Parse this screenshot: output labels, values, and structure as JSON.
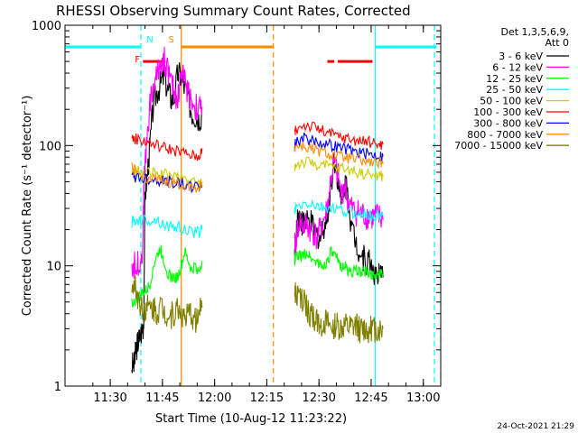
{
  "chart_data": {
    "type": "line",
    "title": "RHESSI Observing Summary Count Rates, Corrected",
    "xlabel": "Start Time (10-Aug-12 11:23:22)",
    "ylabel": "Corrected Count Rate (s⁻¹ detector⁻¹)",
    "yscale": "log",
    "ylim": [
      1,
      1000
    ],
    "xlim_minutes_after_start": [
      -6.4,
      101.6
    ],
    "x_ticks": [
      {
        "label": "11:30",
        "t": 6.6
      },
      {
        "label": "11:45",
        "t": 21.6
      },
      {
        "label": "12:00",
        "t": 36.6
      },
      {
        "label": "12:15",
        "t": 51.6
      },
      {
        "label": "12:30",
        "t": 66.6
      },
      {
        "label": "12:45",
        "t": 81.6
      },
      {
        "label": "13:00",
        "t": 96.6
      }
    ],
    "y_ticks": [
      {
        "label": "1",
        "v": 1
      },
      {
        "label": "10",
        "v": 10
      },
      {
        "label": "100",
        "v": 100
      },
      {
        "label": "1000",
        "v": 1000
      }
    ],
    "legend_header": [
      "Det 1,3,5,6,9,",
      "Att 0"
    ],
    "legend_position": "right",
    "series": [
      {
        "name": "3 - 6 keV",
        "color": "#000000",
        "segments": [
          {
            "x": [
              12.8,
              13.5,
              14.0,
              14.5,
              15.0,
              15.8,
              16.2,
              16.6,
              17.2,
              18.0,
              19.0,
              20.0,
              21.0,
              22.0,
              23.0,
              24.0,
              25.0,
              26.0,
              27.0,
              28.0,
              29.0,
              30.0,
              31.0,
              32.0,
              33.0
            ],
            "y": [
              1.5,
              1.5,
              2.0,
              2.3,
              2.5,
              3.0,
              3.3,
              40,
              55,
              100,
              220,
              280,
              320,
              380,
              300,
              250,
              250,
              400,
              380,
              300,
              250,
              190,
              180,
              170,
              180
            ]
          },
          {
            "x": [
              59.6,
              60.0,
              60.5,
              61.0,
              61.5,
              62.0,
              62.5,
              63.0,
              64.0,
              65.0,
              66.0,
              67.0,
              68.0,
              69.0,
              70.0,
              71.0,
              72.0,
              73.0,
              74.0,
              75.0,
              76.0,
              77.0,
              78.0,
              79.0,
              80.0,
              81.0,
              82.0,
              83.0,
              84.0,
              85.0
            ],
            "y": [
              13,
              15,
              27,
              25,
              24,
              22,
              25,
              22,
              23,
              20,
              18,
              17,
              22,
              25,
              45,
              80,
              55,
              30,
              50,
              40,
              20,
              17,
              14,
              12,
              11,
              11,
              10,
              8,
              8,
              8
            ]
          }
        ]
      },
      {
        "name": "6 - 12 keV",
        "color": "#ff00ff",
        "segments": [
          {
            "x": [
              12.8,
              14.0,
              15.0,
              15.8,
              16.3,
              17.0,
              18.0,
              19.0,
              20.0,
              21.0,
              22.0,
              23.0,
              24.0,
              25.0,
              26.0,
              27.0,
              28.0,
              29.0,
              30.0,
              31.0,
              32.0,
              33.0
            ],
            "y": [
              10,
              10,
              11,
              12,
              50,
              100,
              220,
              310,
              380,
              500,
              520,
              450,
              330,
              280,
              240,
              420,
              350,
              280,
              240,
              210,
              200,
              210
            ]
          },
          {
            "x": [
              59.6,
              60.0,
              61.0,
              62.0,
              63.0,
              64.0,
              65.0,
              66.0,
              67.0,
              68.0,
              69.0,
              70.0,
              71.0,
              72.0,
              73.0,
              74.0,
              75.0,
              76.0,
              77.0,
              78.0,
              79.0,
              80.0,
              81.0,
              82.0,
              83.0,
              84.0,
              85.0
            ],
            "y": [
              14,
              17,
              24,
              21,
              22,
              20,
              19,
              17,
              20,
              24,
              30,
              52,
              72,
              58,
              38,
              48,
              34,
              30,
              28,
              28,
              27,
              26,
              26,
              25,
              26,
              25,
              24
            ]
          }
        ]
      },
      {
        "name": "12 - 25 keV",
        "color": "#00ff00",
        "segments": [
          {
            "x": [
              12.8,
              14.0,
              15.0,
              16.0,
              17.0,
              18.0,
              19.0,
              20.0,
              21.0,
              22.0,
              23.0,
              24.0,
              25.0,
              26.0,
              27.0,
              28.0,
              29.0,
              30.0,
              31.0,
              32.0,
              33.0
            ],
            "y": [
              5,
              5.1,
              5.5,
              6,
              6.2,
              7,
              10,
              12,
              14,
              11,
              9,
              8,
              8,
              8,
              10,
              13,
              11,
              9,
              10,
              9,
              11
            ]
          },
          {
            "x": [
              59.6,
              60.0,
              61.0,
              62.0,
              63.0,
              64.0,
              65.0,
              66.0,
              67.0,
              68.0,
              69.0,
              70.0,
              71.0,
              72.0,
              73.0,
              74.0,
              75.0,
              76.0,
              77.0,
              78.0,
              79.0,
              80.0,
              81.0,
              82.0,
              83.0,
              84.0,
              85.0
            ],
            "y": [
              11,
              12,
              12,
              12,
              13,
              12,
              11,
              11,
              10,
              10,
              11,
              13,
              12,
              11,
              10,
              10,
              9,
              9,
              9,
              9,
              9,
              9,
              8.5,
              8.5,
              8.5,
              8.5,
              8.5
            ]
          }
        ]
      },
      {
        "name": "25 - 50 keV",
        "color": "#00ffff",
        "segments": [
          {
            "x": [
              12.8,
              14.0,
              16.0,
              18.0,
              20.0,
              22.0,
              24.0,
              26.0,
              28.0,
              30.0,
              32.0,
              33.0
            ],
            "y": [
              23,
              24,
              24,
              24,
              24,
              22,
              21,
              21,
              20,
              19,
              19,
              20
            ]
          },
          {
            "x": [
              59.6,
              60.0,
              62.0,
              64.0,
              66.0,
              68.0,
              70.0,
              72.0,
              74.0,
              76.0,
              78.0,
              80.0,
              82.0,
              84.0,
              85.0
            ],
            "y": [
              28,
              30,
              32,
              33,
              31,
              30,
              30,
              29,
              28,
              28,
              27,
              27,
              26,
              26,
              26
            ]
          }
        ]
      },
      {
        "name": "50 - 100 keV",
        "color": "#cccc00",
        "segments": [
          {
            "x": [
              12.8,
              14.0,
              16.0,
              18.0,
              20.0,
              22.0,
              24.0,
              26.0,
              28.0,
              30.0,
              32.0,
              33.0
            ],
            "y": [
              60,
              61,
              60,
              59,
              58,
              57,
              56,
              55,
              53,
              51,
              48,
              50
            ]
          },
          {
            "x": [
              59.6,
              60.0,
              62.0,
              64.0,
              66.0,
              68.0,
              70.0,
              72.0,
              74.0,
              76.0,
              78.0,
              80.0,
              82.0,
              84.0,
              85.0
            ],
            "y": [
              65,
              70,
              72,
              72,
              70,
              68,
              66,
              65,
              64,
              62,
              60,
              58,
              57,
              56,
              55
            ]
          }
        ]
      },
      {
        "name": "100 - 300 keV",
        "color": "#ff0000",
        "segments": [
          {
            "x": [
              12.8,
              14.0,
              16.0,
              18.0,
              20.0,
              22.0,
              24.0,
              26.0,
              28.0,
              30.0,
              32.0,
              33.0
            ],
            "y": [
              115,
              113,
              110,
              105,
              100,
              96,
              93,
              90,
              86,
              83,
              80,
              95
            ]
          },
          {
            "x": [
              59.6,
              60.0,
              62.0,
              64.0,
              66.0,
              68.0,
              70.0,
              72.0,
              74.0,
              76.0,
              78.0,
              80.0,
              82.0,
              84.0,
              85.0
            ],
            "y": [
              125,
              135,
              150,
              145,
              140,
              130,
              125,
              120,
              116,
              113,
              110,
              107,
              105,
              103,
              102
            ]
          }
        ]
      },
      {
        "name": "300 - 800 keV",
        "color": "#0000ff",
        "segments": [
          {
            "x": [
              12.8,
              14.0,
              16.0,
              18.0,
              20.0,
              22.0,
              24.0,
              26.0,
              28.0,
              30.0,
              32.0,
              33.0
            ],
            "y": [
              55,
              55,
              54,
              53,
              52,
              51,
              50,
              49,
              47,
              46,
              45,
              47
            ]
          },
          {
            "x": [
              59.6,
              60.0,
              62.0,
              64.0,
              66.0,
              68.0,
              70.0,
              72.0,
              74.0,
              76.0,
              78.0,
              80.0,
              82.0,
              84.0,
              85.0
            ],
            "y": [
              100,
              108,
              115,
              112,
              108,
              104,
              100,
              97,
              94,
              91,
              88,
              86,
              84,
              82,
              81
            ]
          }
        ]
      },
      {
        "name": "800 - 7000 keV",
        "color": "#ff8c00",
        "segments": [
          {
            "x": [
              12.8,
              14.0,
              16.0,
              18.0,
              20.0,
              22.0,
              24.0,
              26.0,
              28.0,
              30.0,
              32.0,
              33.0
            ],
            "y": [
              65,
              60,
              55,
              53,
              51,
              50,
              49,
              48,
              47,
              46,
              45,
              47
            ]
          },
          {
            "x": [
              59.6,
              60.0,
              62.0,
              64.0,
              66.0,
              68.0,
              70.0,
              72.0,
              74.0,
              76.0,
              78.0,
              80.0,
              82.0,
              84.0,
              85.0
            ],
            "y": [
              95,
              100,
              98,
              94,
              90,
              87,
              84,
              81,
              79,
              77,
              75,
              73,
              72,
              71,
              70
            ]
          }
        ]
      },
      {
        "name": "7000 - 15000 keV",
        "color": "#808000",
        "segments": [
          {
            "x": [
              12.8,
              14.0,
              15.0,
              16.0,
              17.0,
              18.0,
              19.0,
              20.0,
              21.0,
              22.0,
              23.0,
              24.0,
              25.0,
              26.0,
              27.0,
              28.0,
              29.0,
              30.0,
              31.0,
              32.0,
              33.0
            ],
            "y": [
              7,
              6.5,
              5,
              4.5,
              4.6,
              4.4,
              4.5,
              4.2,
              4.6,
              4.3,
              4.0,
              3.8,
              4.1,
              4.4,
              4.2,
              3.5,
              3.8,
              4.0,
              3.5,
              3.8,
              4.5
            ]
          },
          {
            "x": [
              59.6,
              60.0,
              61.0,
              62.0,
              63.0,
              64.0,
              65.0,
              66.0,
              67.0,
              68.0,
              69.0,
              70.0,
              71.0,
              72.0,
              73.0,
              74.0,
              75.0,
              76.0,
              77.0,
              78.0,
              79.0,
              80.0,
              81.0,
              82.0,
              83.0,
              84.0,
              85.0
            ],
            "y": [
              6,
              5.5,
              5.5,
              5,
              4.5,
              4,
              3.6,
              3.4,
              3.3,
              3.4,
              3.2,
              3.0,
              3.2,
              3.1,
              3.0,
              3.1,
              3.0,
              3.0,
              3.1,
              3.0,
              2.9,
              3.0,
              2.9,
              3.0,
              3.0,
              2.9,
              3.0
            ]
          }
        ]
      }
    ],
    "orbit_markers": [
      {
        "color": "#00ffff",
        "x": [
          -6.4,
          15.4
        ],
        "label": "N"
      },
      {
        "color": "#ff8c00",
        "x": [
          27.0,
          53.5
        ],
        "label": "S"
      },
      {
        "color": "#ff0000",
        "x": [
          16.0,
          22.5
        ],
        "label": "F"
      },
      {
        "color": "#ff0000",
        "x": [
          69.0,
          71.0
        ]
      },
      {
        "color": "#ff0000",
        "x": [
          72.0,
          82.0
        ]
      },
      {
        "color": "#00ffff",
        "x": [
          82.8,
          100.4
        ]
      }
    ],
    "vertical_lines": [
      {
        "color": "#00ffff",
        "t": 15.4,
        "style": "dashed"
      },
      {
        "color": "#00ffff",
        "t": 82.8,
        "style": "solid"
      },
      {
        "color": "#00ffff",
        "t": 99.8,
        "style": "dashed"
      },
      {
        "color": "#ff8c00",
        "t": 27.0,
        "style": "solid"
      },
      {
        "color": "#ff8c00",
        "t": 53.5,
        "style": "dashed"
      }
    ],
    "timestamp": "24-Oct-2021 21:29",
    "grid": false
  }
}
